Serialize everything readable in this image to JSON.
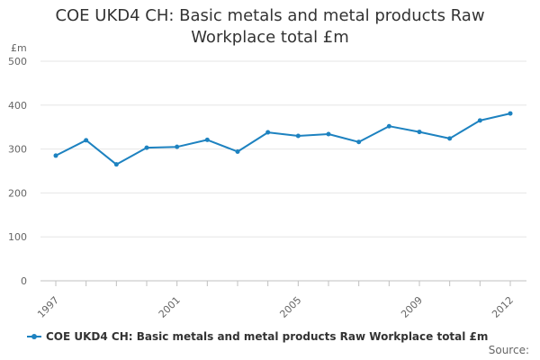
{
  "chart_title": "COE UKD4 CH: Basic metals and metal products Raw Workplace total £m",
  "source_label": "Source:",
  "colors": {
    "series": "#1d82c0",
    "grid": "#e6e6e6",
    "axis": "#c0c0c0",
    "text": "#666666"
  },
  "chart_data": {
    "type": "line",
    "title": "COE UKD4 CH: Basic metals and metal products Raw Workplace total £m",
    "ylabel": "£m",
    "xlabel": "",
    "ylim": [
      0,
      500
    ],
    "yticks": [
      0,
      100,
      200,
      300,
      400,
      500
    ],
    "xticks": [
      1997,
      2001,
      2005,
      2009,
      2012
    ],
    "grid": true,
    "legend_position": "bottom",
    "x": [
      1997,
      1998,
      1999,
      2000,
      2001,
      2002,
      2003,
      2004,
      2005,
      2006,
      2007,
      2008,
      2009,
      2010,
      2011,
      2012
    ],
    "series": [
      {
        "name": "COE UKD4 CH: Basic metals and metal products Raw Workplace total £m",
        "values": [
          285,
          320,
          265,
          303,
          305,
          321,
          294,
          338,
          330,
          334,
          316,
          352,
          339,
          324,
          365,
          381
        ]
      }
    ]
  }
}
